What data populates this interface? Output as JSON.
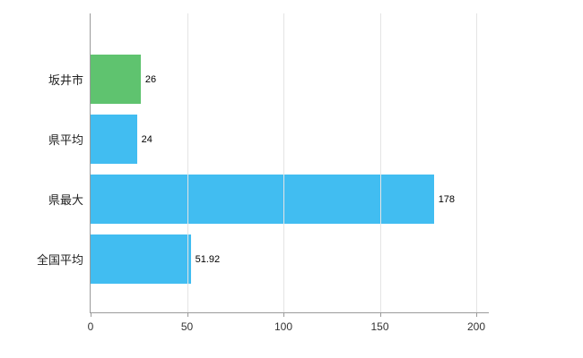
{
  "chart_data": {
    "type": "bar",
    "orientation": "horizontal",
    "title": "",
    "xlabel": "",
    "ylabel": "",
    "categories": [
      "坂井市",
      "県平均",
      "県最大",
      "全国平均"
    ],
    "values": [
      26,
      24,
      178,
      51.92
    ],
    "value_labels": [
      "26",
      "24",
      "178",
      "51.92"
    ],
    "bar_colors": [
      "#5fc36f",
      "#41bdf1",
      "#41bdf1",
      "#41bdf1"
    ],
    "x_ticks": [
      "0",
      "50",
      "100",
      "150",
      "200"
    ],
    "x_tick_values": [
      0,
      50,
      100,
      150,
      200
    ],
    "xlim": [
      0,
      200
    ],
    "grid": true,
    "legend": false,
    "axis_color": "#9a9a9a",
    "gridline_color": "#e4e4e4"
  }
}
